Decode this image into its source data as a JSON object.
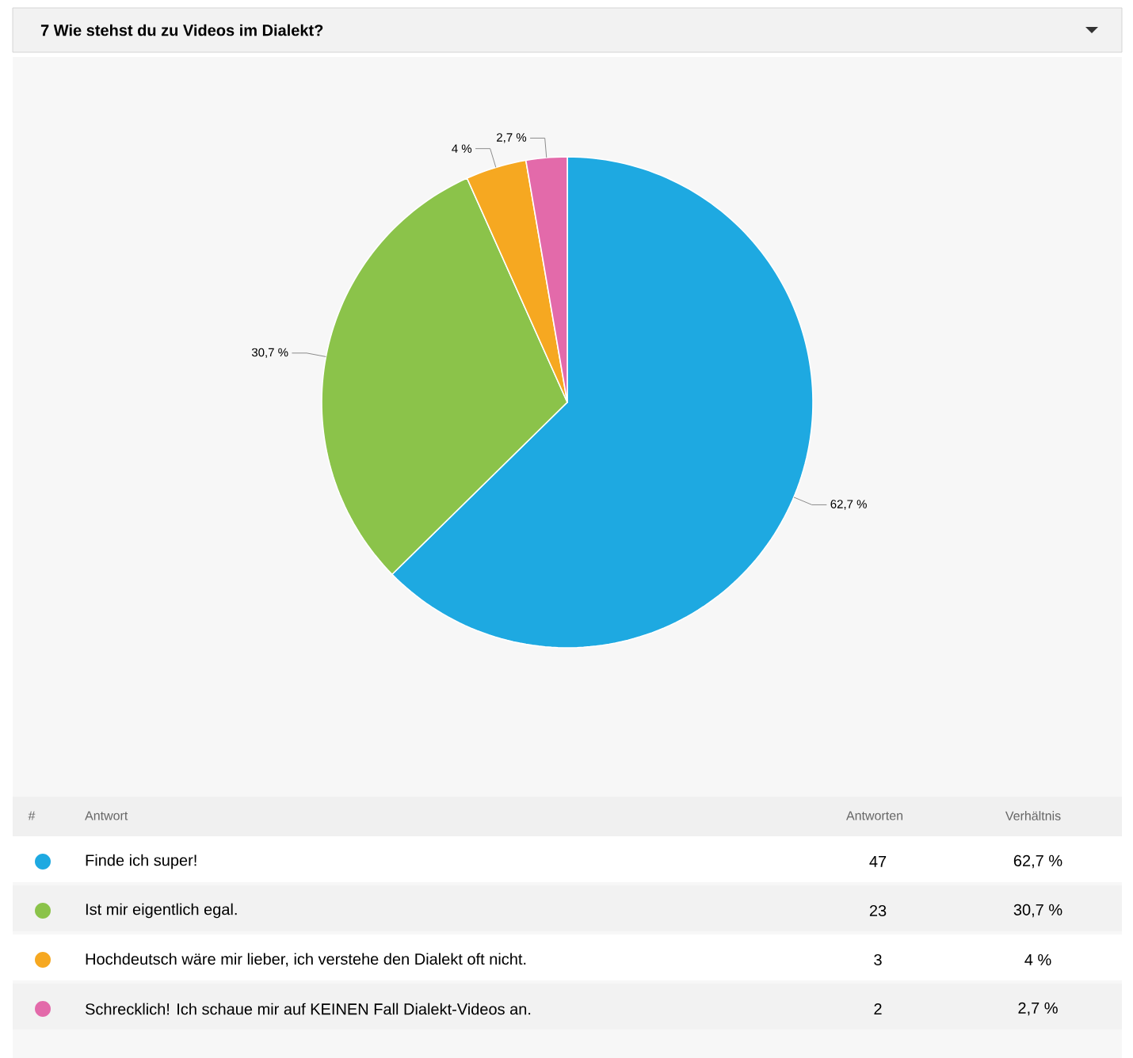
{
  "chart_data": {
    "type": "pie",
    "title": "7 Wie stehst du zu Videos im Dialekt?",
    "categories": [
      "Finde ich super!",
      "Ist mir eigentlich egal.",
      "Hochdeutsch wäre mir lieber, ich verstehe den Dialekt oft nicht.",
      "Schrecklich! Ich schaue mir auf KEINEN Fall Dialekt-Videos an."
    ],
    "values": [
      62.7,
      30.7,
      4,
      2.7
    ],
    "colors": [
      "#1ea9e1",
      "#8bc34a",
      "#f6a821",
      "#e36aaa"
    ],
    "value_labels": [
      "62,7 %",
      "30,7 %",
      "4 %",
      "2,7 %"
    ],
    "annotations": [
      "#",
      "Antwort",
      "Antworten",
      "Verhältnis",
      "47",
      "23",
      "3",
      "2"
    ],
    "legend": "bottom"
  }
}
